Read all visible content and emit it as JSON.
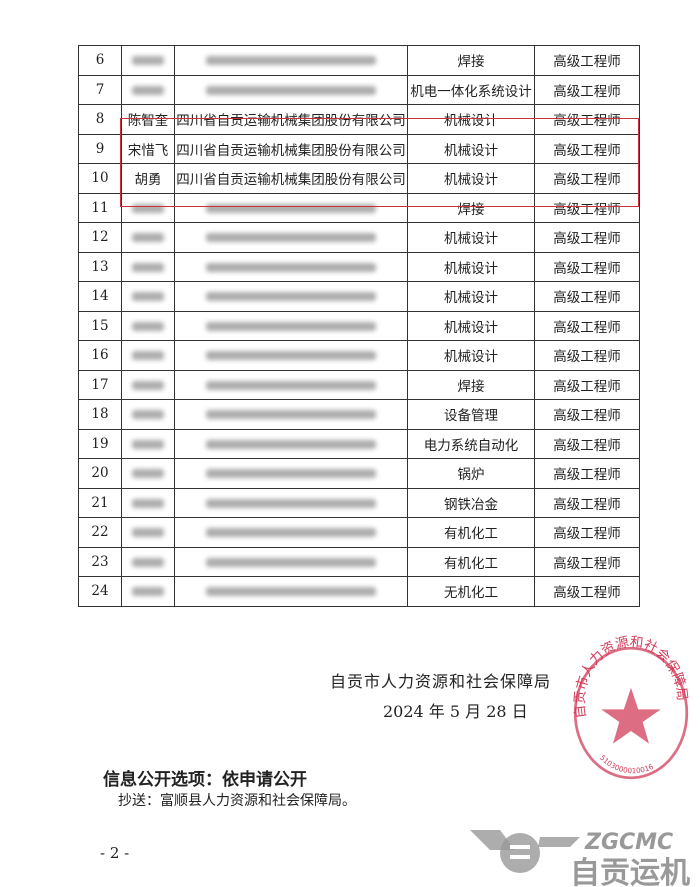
{
  "table": {
    "rows": [
      {
        "no": "6",
        "name": "",
        "company": "",
        "major": "焊接",
        "title": "高级工程师",
        "redacted": true
      },
      {
        "no": "7",
        "name": "",
        "company": "",
        "major": "机电一体化系统设计",
        "title": "高级工程师",
        "redacted": true
      },
      {
        "no": "8",
        "name": "陈智奎",
        "company": "四川省自贡运输机械集团股份有限公司",
        "major": "机械设计",
        "title": "高级工程师",
        "redacted": false
      },
      {
        "no": "9",
        "name": "宋惜飞",
        "company": "四川省自贡运输机械集团股份有限公司",
        "major": "机械设计",
        "title": "高级工程师",
        "redacted": false
      },
      {
        "no": "10",
        "name": "胡勇",
        "company": "四川省自贡运输机械集团股份有限公司",
        "major": "机械设计",
        "title": "高级工程师",
        "redacted": false
      },
      {
        "no": "11",
        "name": "",
        "company": "",
        "major": "焊接",
        "title": "高级工程师",
        "redacted": true
      },
      {
        "no": "12",
        "name": "",
        "company": "",
        "major": "机械设计",
        "title": "高级工程师",
        "redacted": true
      },
      {
        "no": "13",
        "name": "",
        "company": "",
        "major": "机械设计",
        "title": "高级工程师",
        "redacted": true
      },
      {
        "no": "14",
        "name": "",
        "company": "",
        "major": "机械设计",
        "title": "高级工程师",
        "redacted": true
      },
      {
        "no": "15",
        "name": "",
        "company": "",
        "major": "机械设计",
        "title": "高级工程师",
        "redacted": true
      },
      {
        "no": "16",
        "name": "",
        "company": "",
        "major": "机械设计",
        "title": "高级工程师",
        "redacted": true
      },
      {
        "no": "17",
        "name": "",
        "company": "",
        "major": "焊接",
        "title": "高级工程师",
        "redacted": true
      },
      {
        "no": "18",
        "name": "",
        "company": "",
        "major": "设备管理",
        "title": "高级工程师",
        "redacted": true
      },
      {
        "no": "19",
        "name": "",
        "company": "",
        "major": "电力系统自动化",
        "title": "高级工程师",
        "redacted": true
      },
      {
        "no": "20",
        "name": "",
        "company": "",
        "major": "锅炉",
        "title": "高级工程师",
        "redacted": true
      },
      {
        "no": "21",
        "name": "",
        "company": "",
        "major": "钢铁冶金",
        "title": "高级工程师",
        "redacted": true
      },
      {
        "no": "22",
        "name": "",
        "company": "",
        "major": "有机化工",
        "title": "高级工程师",
        "redacted": true
      },
      {
        "no": "23",
        "name": "",
        "company": "",
        "major": "有机化工",
        "title": "高级工程师",
        "redacted": true
      },
      {
        "no": "24",
        "name": "",
        "company": "",
        "major": "无机化工",
        "title": "高级工程师",
        "redacted": true
      }
    ],
    "highlight_color": "#c8323c"
  },
  "signature": {
    "org": "自贡市人力资源和社会保障局",
    "date": "2024 年 5 月 28 日"
  },
  "seal": {
    "text": "自贡市人力资源和社会保障局",
    "code": "5103000010016",
    "color": "#d23c5a"
  },
  "disclosure": "信息公开选项：依申请公开",
  "cc": "抄送：富顺县人力资源和社会保障局。",
  "page_number": "- 2 -",
  "watermark": {
    "latin": "ZGCMC",
    "chinese": "自贡运机"
  }
}
